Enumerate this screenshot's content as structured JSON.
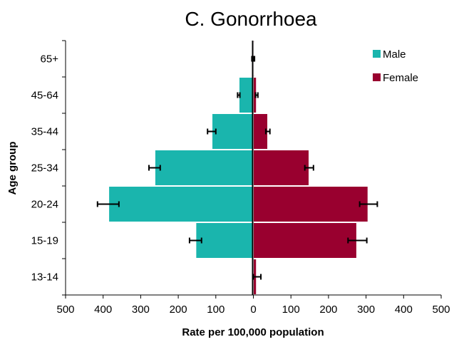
{
  "chart_data": {
    "type": "bar",
    "orientation": "horizontal",
    "layout": "population-pyramid",
    "title": "C.  Gonorrhoea",
    "xlabel": "Rate per 100,000 population",
    "ylabel": "Age group",
    "categories": [
      "65+",
      "45-64",
      "35-44",
      "25-34",
      "20-24",
      "15-19",
      "13-14"
    ],
    "x_ticks": [
      "500",
      "400",
      "300",
      "200",
      "100",
      "0",
      "100",
      "200",
      "300",
      "400",
      "500"
    ],
    "xlim": [
      -500,
      500
    ],
    "legend_position": "top-right",
    "grid": false,
    "series": [
      {
        "name": "Male",
        "color": "#1ab5ad",
        "side": "left",
        "values": [
          3,
          38,
          110,
          262,
          385,
          153,
          0
        ],
        "error_low": [
          2,
          36,
          100,
          248,
          358,
          138,
          0
        ],
        "error_high": [
          4,
          42,
          122,
          278,
          415,
          170,
          0
        ]
      },
      {
        "name": "Female",
        "color": "#99002f",
        "side": "right",
        "values": [
          2,
          8,
          38,
          148,
          305,
          275,
          8
        ],
        "error_low": [
          1,
          6,
          33,
          137,
          283,
          252,
          0
        ],
        "error_high": [
          3,
          12,
          44,
          160,
          330,
          302,
          20
        ]
      }
    ]
  }
}
